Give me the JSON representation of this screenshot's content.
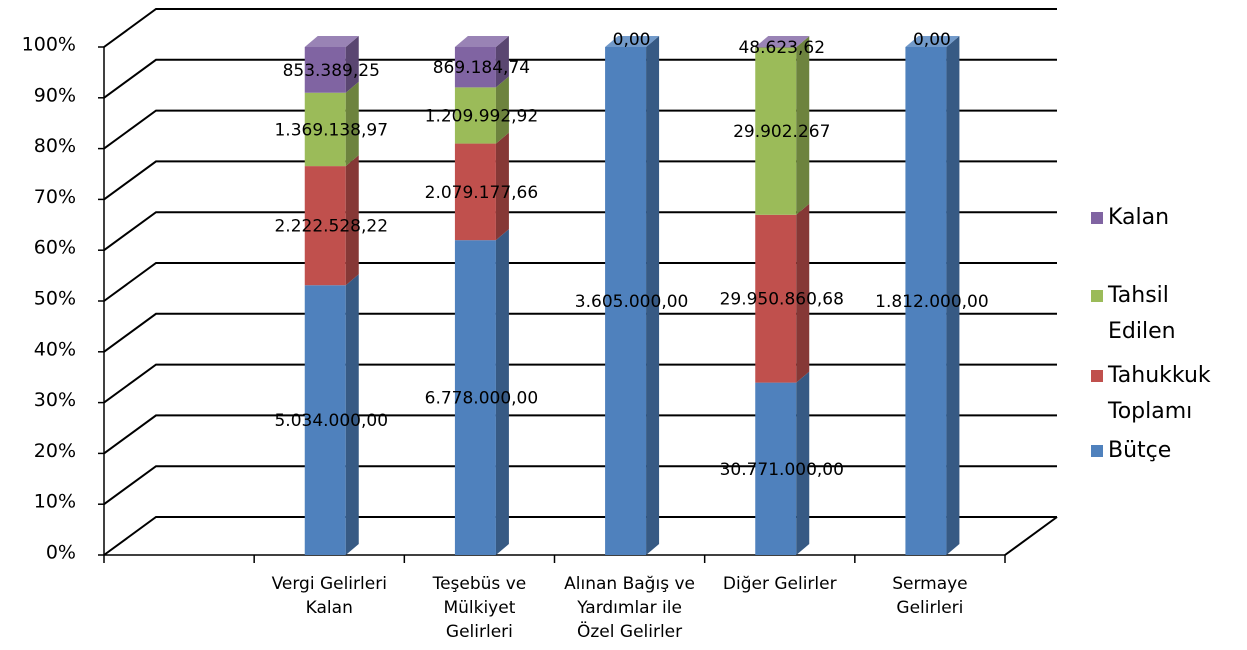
{
  "chart_data": {
    "type": "bar",
    "stacked": "percent",
    "three_d": true,
    "categories": [
      [
        "Vergi Gelirleri",
        "Kalan"
      ],
      [
        "Teşebüs ve",
        "Mülkiyet",
        "Gelirleri"
      ],
      [
        "Alınan Bağış ve",
        "Yardımlar ile",
        "Özel Gelirler"
      ],
      [
        "Diğer Gelirler"
      ],
      [
        "Sermaye",
        "Gelirleri"
      ]
    ],
    "y_ticks": [
      "0%",
      "10%",
      "20%",
      "30%",
      "40%",
      "50%",
      "60%",
      "70%",
      "80%",
      "90%",
      "100%"
    ],
    "ylim": [
      0,
      100
    ],
    "grid": true,
    "legend_position": "right",
    "series": [
      {
        "name": "Bütçe",
        "color": "#4F81BD",
        "values": [
          5034000.0,
          6778000.0,
          3605000.0,
          30771000.0,
          1812000.0
        ],
        "labels": [
          "5.034.000,00",
          "6.778.000,00",
          "3.605.000,00",
          "30.771.000,00",
          "1.812.000,00"
        ]
      },
      {
        "name": "Tahukkuk Toplamı",
        "legend_lines": [
          "Tahukkuk",
          "Toplamı"
        ],
        "color": "#C0504D",
        "values": [
          2222528.22,
          2079177.66,
          0,
          29950860.68,
          0
        ],
        "labels": [
          "2.222.528,22",
          "2.079.177,66",
          "",
          "29.950.860,68",
          ""
        ]
      },
      {
        "name": "Tahsil Edilen",
        "legend_lines": [
          "Tahsil",
          "Edilen"
        ],
        "color": "#9BBB59",
        "values": [
          1369138.97,
          1209992.92,
          0,
          29902267,
          0
        ],
        "labels": [
          "1.369.138,97",
          "1.209.992,92",
          "",
          "29.902.267",
          ""
        ]
      },
      {
        "name": "Kalan",
        "legend_lines": [
          "Kalan"
        ],
        "color": "#8064A2",
        "values": [
          853389.25,
          869184.74,
          0.0,
          48623.62,
          0.0
        ],
        "labels": [
          "853.389,25",
          "869.184,74",
          "0,00",
          "48.623,62",
          "0,00"
        ]
      }
    ]
  }
}
